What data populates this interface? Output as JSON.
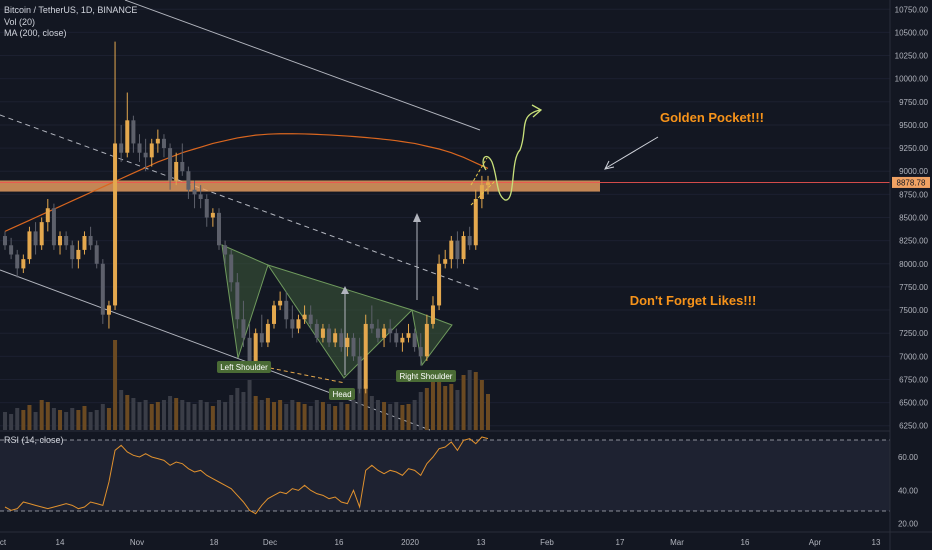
{
  "header": {
    "symbol": "Bitcoin / TetherUS, 1D, BINANCE",
    "vol": "Vol (20)",
    "ma": "MA (200, close)",
    "rsi": "RSI (14, close)"
  },
  "annotations": {
    "golden_pocket": "Golden Pocket!!!",
    "likes": "Don't Forget Likes!!!",
    "left_shoulder": "Left Shoulder",
    "head": "Head",
    "right_shoulder": "Right Shoulder"
  },
  "price_badge": "8878.78",
  "colors": {
    "background": "#131722",
    "up": "#e4a84e",
    "down": "#5d606b",
    "ma": "#d9661f",
    "zone": "#f0a263",
    "annotation_text": "#f7931a",
    "pattern_fill": "#3e5b3a",
    "label_bg": "#4a6b35",
    "rsi": "#e0912e"
  },
  "chart_data": {
    "type": "candlestick",
    "price_axis": {
      "ticks": [
        6250,
        6500,
        6750,
        7000,
        7250,
        7500,
        7750,
        8000,
        8250,
        8500,
        8750,
        9000,
        9250,
        9500,
        9750,
        10000,
        10250,
        10500,
        10750
      ],
      "labels": [
        "6250.00",
        "6500.00",
        "6750.00",
        "7000.00",
        "7250.00",
        "7500.00",
        "7750.00",
        "8000.00",
        "8250.00",
        "8500.00",
        "8750.00",
        "9000.00",
        "9250.00",
        "9500.00",
        "9750.00",
        "10000.00",
        "10250.00",
        "10500.00",
        "10750.00"
      ],
      "range": [
        6150,
        10850
      ]
    },
    "rsi_axis": {
      "ticks": [
        20,
        40,
        60
      ],
      "labels": [
        "20.00",
        "40.00",
        "60.00"
      ],
      "range": [
        15,
        75
      ],
      "levels": [
        30,
        70
      ]
    },
    "time_axis": [
      "ct",
      "14",
      "Nov",
      "18",
      "Dec",
      "16",
      "2020",
      "13",
      "Feb",
      "17",
      "Mar",
      "16",
      "Apr",
      "13"
    ],
    "last_price": 8878.78,
    "golden_pocket_zone": [
      8780,
      8900
    ],
    "candles": [
      [
        8300,
        8350,
        8150,
        8200
      ],
      [
        8200,
        8280,
        8050,
        8100
      ],
      [
        8100,
        8150,
        7850,
        7950
      ],
      [
        7950,
        8100,
        7900,
        8050
      ],
      [
        8050,
        8400,
        8000,
        8350
      ],
      [
        8350,
        8450,
        8100,
        8200
      ],
      [
        8200,
        8500,
        8150,
        8450
      ],
      [
        8450,
        8700,
        8350,
        8600
      ],
      [
        8600,
        8650,
        8150,
        8200
      ],
      [
        8200,
        8350,
        8100,
        8300
      ],
      [
        8300,
        8350,
        8150,
        8200
      ],
      [
        8200,
        8250,
        7950,
        8050
      ],
      [
        8050,
        8250,
        7950,
        8150
      ],
      [
        8150,
        8350,
        8100,
        8300
      ],
      [
        8300,
        8400,
        8150,
        8200
      ],
      [
        8200,
        8250,
        7950,
        8000
      ],
      [
        8000,
        8050,
        7350,
        7450
      ],
      [
        7450,
        7600,
        7300,
        7550
      ],
      [
        7550,
        10400,
        7500,
        9300
      ],
      [
        9300,
        9500,
        9100,
        9200
      ],
      [
        9200,
        9850,
        9150,
        9550
      ],
      [
        9550,
        9600,
        9200,
        9300
      ],
      [
        9300,
        9400,
        9100,
        9200
      ],
      [
        9200,
        9350,
        9000,
        9150
      ],
      [
        9150,
        9350,
        9050,
        9300
      ],
      [
        9300,
        9450,
        9200,
        9350
      ],
      [
        9350,
        9400,
        9150,
        9250
      ],
      [
        9250,
        9300,
        8800,
        8900
      ],
      [
        8900,
        9200,
        8850,
        9100
      ],
      [
        9100,
        9300,
        8950,
        9000
      ],
      [
        9000,
        9050,
        8700,
        8800
      ],
      [
        8800,
        8900,
        8600,
        8750
      ],
      [
        8750,
        8850,
        8600,
        8700
      ],
      [
        8700,
        8750,
        8400,
        8500
      ],
      [
        8500,
        8600,
        8400,
        8550
      ],
      [
        8550,
        8600,
        8150,
        8200
      ],
      [
        8200,
        8250,
        8000,
        8100
      ],
      [
        8100,
        8150,
        7700,
        7800
      ],
      [
        7800,
        7900,
        7300,
        7400
      ],
      [
        7400,
        7600,
        7100,
        7200
      ],
      [
        7200,
        7350,
        6850,
        6950
      ],
      [
        6950,
        7300,
        6900,
        7250
      ],
      [
        7250,
        7450,
        7100,
        7150
      ],
      [
        7150,
        7400,
        7100,
        7350
      ],
      [
        7350,
        7600,
        7300,
        7550
      ],
      [
        7550,
        7700,
        7500,
        7600
      ],
      [
        7600,
        7700,
        7300,
        7400
      ],
      [
        7400,
        7550,
        7200,
        7300
      ],
      [
        7300,
        7450,
        7250,
        7400
      ],
      [
        7400,
        7550,
        7350,
        7450
      ],
      [
        7450,
        7550,
        7300,
        7350
      ],
      [
        7350,
        7400,
        7150,
        7200
      ],
      [
        7200,
        7350,
        7150,
        7300
      ],
      [
        7300,
        7350,
        7100,
        7150
      ],
      [
        7150,
        7300,
        7100,
        7250
      ],
      [
        7250,
        7300,
        7050,
        7100
      ],
      [
        7100,
        7250,
        7000,
        7200
      ],
      [
        7200,
        7250,
        6950,
        7000
      ],
      [
        7000,
        7200,
        6600,
        6650
      ],
      [
        6650,
        7450,
        6600,
        7350
      ],
      [
        7350,
        7550,
        7250,
        7300
      ],
      [
        7300,
        7400,
        7150,
        7200
      ],
      [
        7200,
        7350,
        7100,
        7300
      ],
      [
        7300,
        7400,
        7150,
        7250
      ],
      [
        7250,
        7300,
        7100,
        7150
      ],
      [
        7150,
        7250,
        7050,
        7200
      ],
      [
        7200,
        7350,
        7150,
        7250
      ],
      [
        7250,
        7300,
        7050,
        7100
      ],
      [
        7100,
        7250,
        6900,
        7000
      ],
      [
        7000,
        7450,
        6950,
        7350
      ],
      [
        7350,
        7650,
        7300,
        7550
      ],
      [
        7550,
        8100,
        7500,
        8000
      ],
      [
        8000,
        8150,
        7950,
        8050
      ],
      [
        8050,
        8300,
        7950,
        8250
      ],
      [
        8250,
        8350,
        7950,
        8050
      ],
      [
        8050,
        8350,
        8000,
        8300
      ],
      [
        8300,
        8400,
        8150,
        8200
      ],
      [
        8200,
        8800,
        8150,
        8700
      ],
      [
        8700,
        8950,
        8600,
        8850
      ],
      [
        8850,
        8950,
        8750,
        8880
      ]
    ],
    "volumes": [
      0.18,
      0.16,
      0.22,
      0.2,
      0.25,
      0.18,
      0.3,
      0.28,
      0.22,
      0.2,
      0.18,
      0.22,
      0.2,
      0.24,
      0.18,
      0.2,
      0.26,
      0.22,
      0.9,
      0.4,
      0.35,
      0.32,
      0.28,
      0.3,
      0.26,
      0.28,
      0.3,
      0.34,
      0.32,
      0.3,
      0.28,
      0.26,
      0.3,
      0.28,
      0.24,
      0.3,
      0.28,
      0.35,
      0.42,
      0.38,
      0.5,
      0.34,
      0.3,
      0.32,
      0.28,
      0.3,
      0.26,
      0.3,
      0.28,
      0.26,
      0.24,
      0.3,
      0.28,
      0.26,
      0.24,
      0.28,
      0.26,
      0.3,
      0.55,
      0.45,
      0.34,
      0.3,
      0.28,
      0.26,
      0.28,
      0.25,
      0.26,
      0.3,
      0.38,
      0.42,
      0.5,
      0.48,
      0.44,
      0.46,
      0.4,
      0.55,
      0.6,
      0.58,
      0.5,
      0.36
    ],
    "rsi": [
      30,
      28,
      29,
      33,
      32,
      31,
      30,
      29,
      30,
      31,
      32,
      31,
      29,
      30,
      33,
      32,
      31,
      45,
      64,
      67,
      63,
      61,
      60,
      62,
      60,
      59,
      58,
      55,
      57,
      56,
      53,
      51,
      52,
      49,
      47,
      45,
      43,
      41,
      37,
      33,
      28,
      26,
      31,
      35,
      37,
      39,
      38,
      41,
      40,
      43,
      40,
      38,
      37,
      35,
      36,
      33,
      32,
      40,
      30,
      52,
      55,
      52,
      50,
      52,
      51,
      49,
      53,
      52,
      49,
      56,
      60,
      65,
      66,
      69,
      64,
      70,
      71,
      68,
      72,
      71
    ],
    "ma200": [
      8350,
      8380,
      8410,
      8440,
      8470,
      8500,
      8530,
      8560,
      8590,
      8620,
      8650,
      8680,
      8710,
      8740,
      8770,
      8800,
      8830,
      8860,
      8890,
      8920,
      8950,
      8980,
      9010,
      9040,
      9070,
      9100,
      9125,
      9150,
      9175,
      9200,
      9220,
      9240,
      9260,
      9280,
      9300,
      9315,
      9330,
      9345,
      9360,
      9370,
      9380,
      9390,
      9395,
      9400,
      9403,
      9405,
      9405,
      9405,
      9404,
      9403,
      9401,
      9398,
      9395,
      9392,
      9388,
      9384,
      9380,
      9375,
      9370,
      9364,
      9358,
      9352,
      9345,
      9338,
      9330,
      9320,
      9310,
      9300,
      9285,
      9270,
      9255,
      9240,
      9220,
      9200,
      9175,
      9150,
      9120,
      9090,
      9060,
      9030
    ]
  }
}
